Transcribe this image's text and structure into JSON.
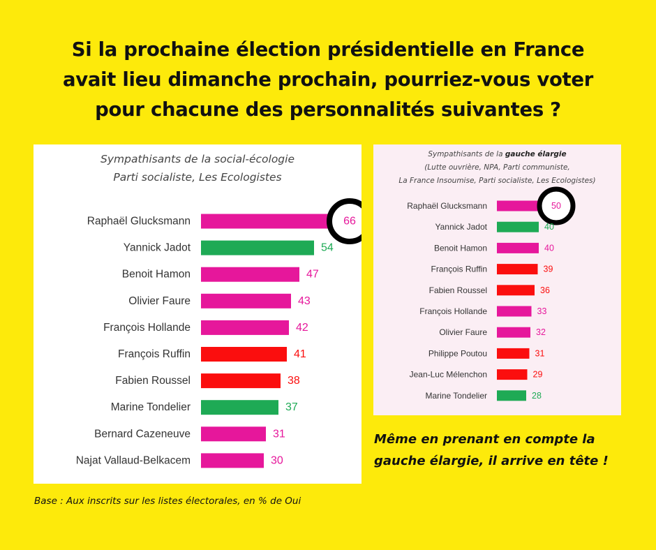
{
  "headline": [
    "Si la prochaine élection présidentielle en France",
    "avait lieu dimanche prochain, pourriez-vous voter",
    "pour chacune des personnalités suivantes ?"
  ],
  "colors": {
    "background": "#fdea0b",
    "pink": "#e6179b",
    "green": "#1eaa55",
    "red": "#fb0e0e",
    "highlight_ring": "#000000"
  },
  "chart_data": [
    {
      "type": "bar",
      "orientation": "horizontal",
      "subtitle": [
        "Sympathisants de la social-écologie",
        "Parti socialiste, Les Ecologistes"
      ],
      "categories": [
        "Raphaël Glucksmann",
        "Yannick Jadot",
        "Benoit Hamon",
        "Olivier Faure",
        "François Hollande",
        "François Ruffin",
        "Fabien Roussel",
        "Marine Tondelier",
        "Bernard Cazeneuve",
        "Najat Vallaud-Belkacem"
      ],
      "values": [
        66,
        54,
        47,
        43,
        42,
        41,
        38,
        37,
        31,
        30
      ],
      "bar_colors": [
        "pink",
        "green",
        "pink",
        "pink",
        "pink",
        "red",
        "red",
        "green",
        "pink",
        "pink"
      ],
      "highlighted": "Raphaël Glucksmann",
      "unit": "% de Oui",
      "grid": false,
      "legend": "none"
    },
    {
      "type": "bar",
      "orientation": "horizontal",
      "subtitle": [
        "Sympathisants de la gauche élargie",
        "(Lutte ouvrière, NPA, Parti communiste,",
        "La France Insoumise, Parti socialiste, Les Ecologistes)"
      ],
      "subtitle_bold": "gauche élargie",
      "categories": [
        "Raphaël Glucksmann",
        "Yannick Jadot",
        "Benoit Hamon",
        "François Ruffin",
        "Fabien Roussel",
        "François Hollande",
        "Olivier Faure",
        "Philippe Poutou",
        "Jean-Luc Mélenchon",
        "Marine Tondelier"
      ],
      "values": [
        50,
        40,
        40,
        39,
        36,
        33,
        32,
        31,
        29,
        28
      ],
      "bar_colors": [
        "pink",
        "green",
        "pink",
        "red",
        "red",
        "pink",
        "pink",
        "red",
        "red",
        "green"
      ],
      "highlighted": "Raphaël Glucksmann",
      "unit": "% de Oui",
      "grid": false,
      "legend": "none"
    }
  ],
  "note": [
    "Même en prenant en compte la",
    "gauche élargie, il arrive en tête !"
  ],
  "base": "Base : Aux inscrits sur les listes électorales, en % de Oui"
}
